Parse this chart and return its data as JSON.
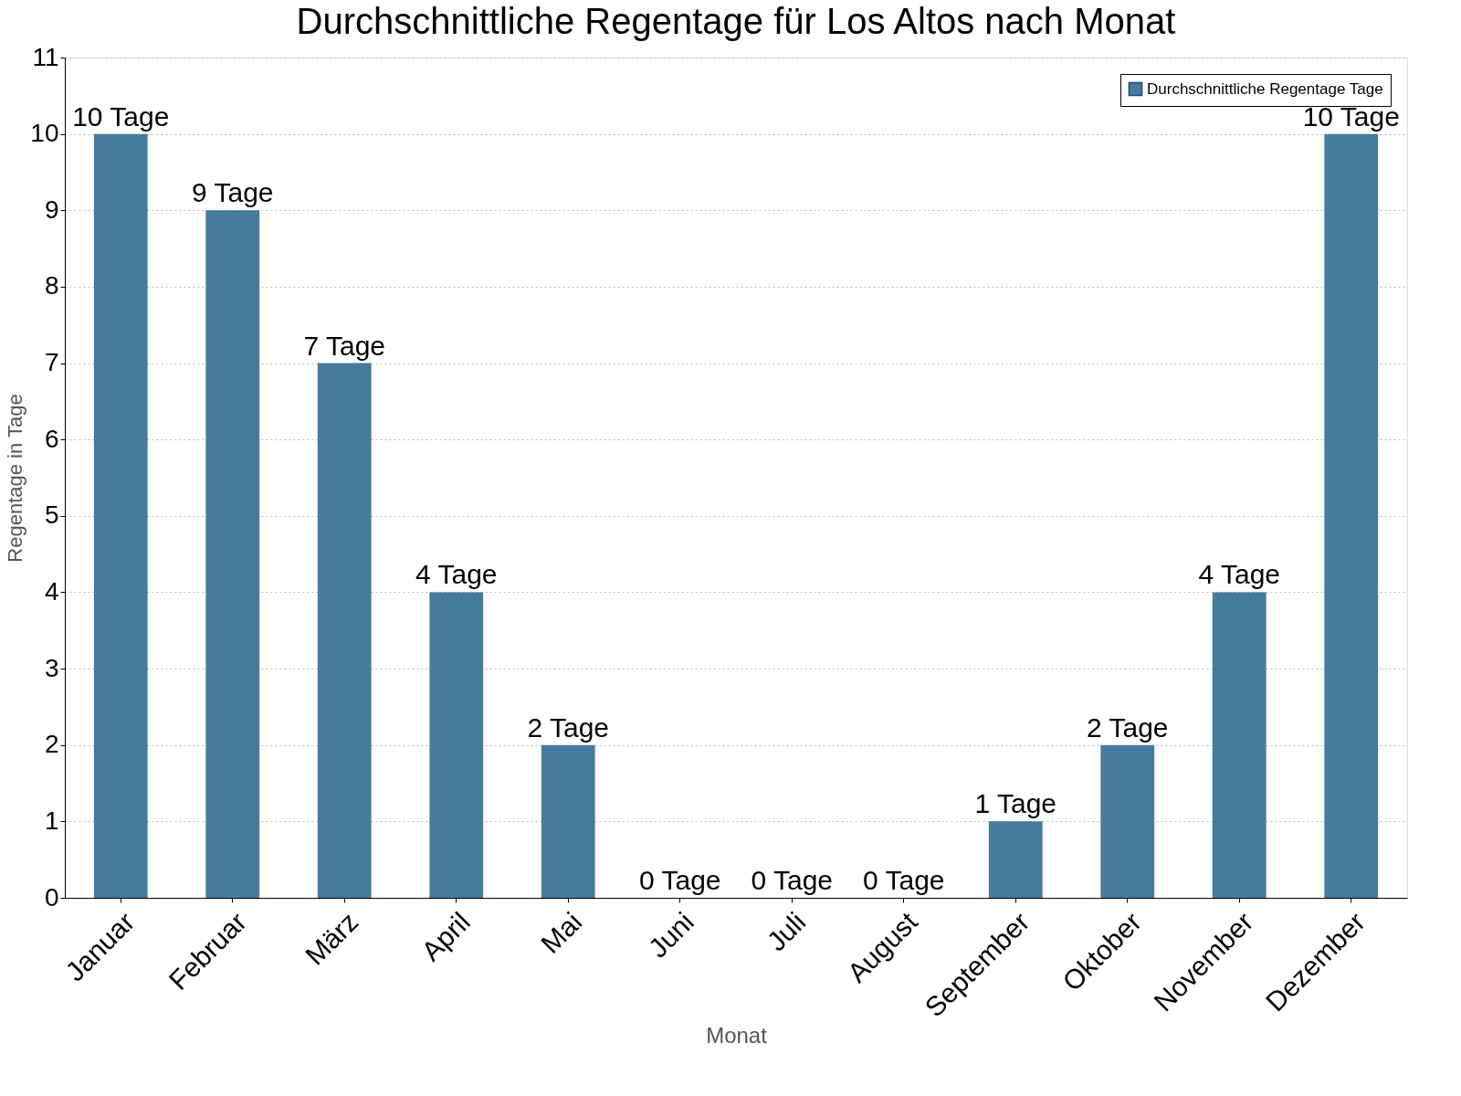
{
  "chart_data": {
    "type": "bar",
    "title": "Durchschnittliche Regentage für Los Altos nach Monat",
    "xlabel": "Monat",
    "ylabel": "Regentage in Tage",
    "categories": [
      "Januar",
      "Februar",
      "März",
      "April",
      "Mai",
      "Juni",
      "Juli",
      "August",
      "September",
      "Oktober",
      "November",
      "Dezember"
    ],
    "series": [
      {
        "name": "Durchschnittliche Regentage Tage",
        "color": "#457b9d",
        "values": [
          10,
          9,
          7,
          4,
          2,
          0,
          0,
          0,
          1,
          2,
          4,
          10
        ],
        "value_labels": [
          "10 Tage",
          "9 Tage",
          "7 Tage",
          "4 Tage",
          "2 Tage",
          "0 Tage",
          "0 Tage",
          "0 Tage",
          "1 Tage",
          "2 Tage",
          "4 Tage",
          "10 Tage"
        ]
      }
    ],
    "ylim": [
      0,
      11
    ],
    "yticks": [
      0,
      1,
      2,
      3,
      4,
      5,
      6,
      7,
      8,
      9,
      10,
      11
    ],
    "grid": "y",
    "legend": "top right"
  }
}
